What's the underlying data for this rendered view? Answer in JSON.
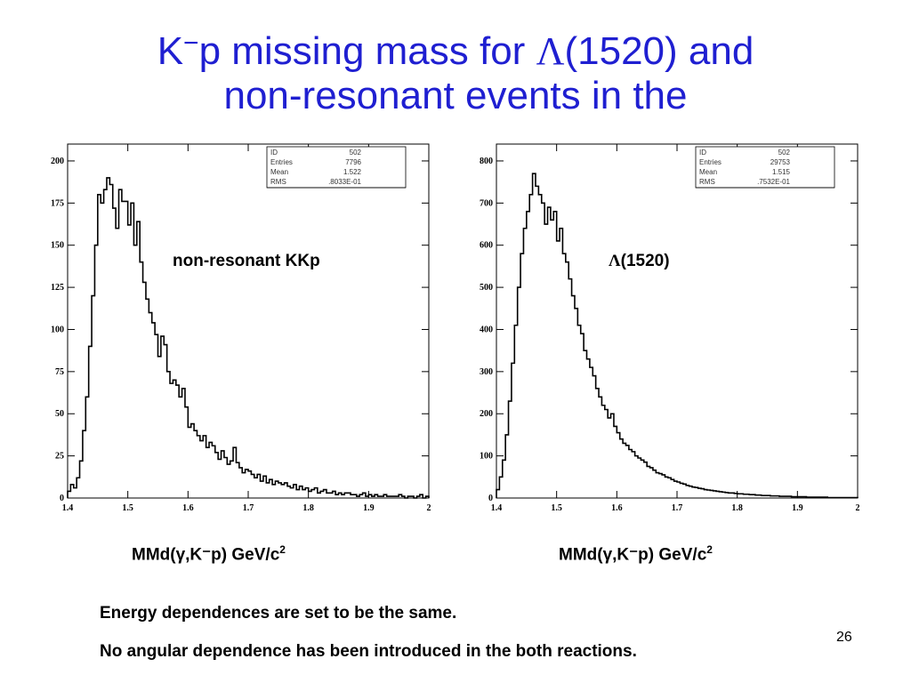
{
  "slide": {
    "title_line1_a": "K",
    "title_line1_sup": "−",
    "title_line1_b": "p missing mass for ",
    "title_lambda": "Λ",
    "title_line1_c": "(1520) and",
    "title_line2": "non-resonant events in the",
    "notes": [
      "Energy dependences are set to be the same.",
      "No angular dependence has been introduced in the both reactions."
    ],
    "page_number": "26"
  },
  "chart_data": [
    {
      "type": "histogram",
      "label": "non-resonant KKp",
      "xlabel_main": "MMd(γ,K⁻p)   GeV/c",
      "xlabel_sup": "2",
      "xlim": [
        1.4,
        2.0
      ],
      "ylim": [
        0,
        210
      ],
      "xticks": [
        "1.4",
        "1.5",
        "1.6",
        "1.7",
        "1.8",
        "1.9",
        "2"
      ],
      "yticks": [
        "0",
        "25",
        "50",
        "75",
        "100",
        "125",
        "150",
        "175",
        "200"
      ],
      "stats": [
        [
          "ID",
          "502"
        ],
        [
          "Entries",
          "7796"
        ],
        [
          "Mean",
          "1.522"
        ],
        [
          "RMS",
          ".8033E-01"
        ]
      ],
      "bin_width": 0.005,
      "x": [
        1.4025,
        1.4075,
        1.4125,
        1.4175,
        1.4225,
        1.4275,
        1.4325,
        1.4375,
        1.4425,
        1.4475,
        1.4525,
        1.4575,
        1.4625,
        1.4675,
        1.4725,
        1.4775,
        1.4825,
        1.4875,
        1.4925,
        1.4975,
        1.5025,
        1.5075,
        1.5125,
        1.5175,
        1.5225,
        1.5275,
        1.5325,
        1.5375,
        1.5425,
        1.5475,
        1.5525,
        1.5575,
        1.5625,
        1.5675,
        1.5725,
        1.5775,
        1.5825,
        1.5875,
        1.5925,
        1.5975,
        1.6025,
        1.6075,
        1.6125,
        1.6175,
        1.6225,
        1.6275,
        1.6325,
        1.6375,
        1.6425,
        1.6475,
        1.6525,
        1.6575,
        1.6625,
        1.6675,
        1.6725,
        1.6775,
        1.6825,
        1.6875,
        1.6925,
        1.6975,
        1.7025,
        1.7075,
        1.7125,
        1.7175,
        1.7225,
        1.7275,
        1.7325,
        1.7375,
        1.7425,
        1.7475,
        1.7525,
        1.7575,
        1.7625,
        1.7675,
        1.7725,
        1.7775,
        1.7825,
        1.7875,
        1.7925,
        1.7975,
        1.8025,
        1.8075,
        1.8125,
        1.8175,
        1.8225,
        1.8275,
        1.8325,
        1.8375,
        1.8425,
        1.8475,
        1.8525,
        1.8575,
        1.8625,
        1.8675,
        1.8725,
        1.8775,
        1.8825,
        1.8875,
        1.8925,
        1.8975,
        1.9025,
        1.9075,
        1.9125,
        1.9175,
        1.9225,
        1.9275,
        1.9325,
        1.9375,
        1.9425,
        1.9475,
        1.9525,
        1.9575,
        1.9625,
        1.9675,
        1.9725,
        1.9775,
        1.9825,
        1.9875,
        1.9925,
        1.9975
      ],
      "values": [
        4,
        8,
        6,
        12,
        22,
        40,
        60,
        90,
        120,
        150,
        180,
        175,
        183,
        190,
        186,
        172,
        160,
        183,
        176,
        176,
        162,
        175,
        150,
        164,
        140,
        128,
        118,
        110,
        104,
        97,
        84,
        96,
        91,
        75,
        68,
        70,
        67,
        60,
        65,
        54,
        42,
        44,
        40,
        37,
        34,
        37,
        30,
        33,
        31,
        27,
        23,
        28,
        24,
        20,
        22,
        30,
        21,
        18,
        15,
        17,
        16,
        14,
        12,
        14,
        10,
        13,
        9,
        11,
        8,
        10,
        9,
        8,
        9,
        7,
        6,
        8,
        5,
        7,
        5,
        6,
        4,
        5,
        6,
        3,
        4,
        5,
        3,
        3,
        4,
        2,
        3,
        2,
        3,
        3,
        2,
        2,
        1,
        2,
        3,
        1,
        2,
        1,
        2,
        1,
        1,
        2,
        1,
        1,
        1,
        1,
        2,
        1,
        0,
        1,
        1,
        0,
        1,
        2,
        0,
        1
      ]
    },
    {
      "type": "histogram",
      "label_lambda": "Λ",
      "label_rest": "(1520)",
      "xlabel_main": "MMd(γ,K⁻p)   GeV/c",
      "xlabel_sup": "2",
      "xlim": [
        1.4,
        2.0
      ],
      "ylim": [
        0,
        840
      ],
      "xticks": [
        "1.4",
        "1.5",
        "1.6",
        "1.7",
        "1.8",
        "1.9",
        "2"
      ],
      "yticks": [
        "0",
        "100",
        "200",
        "300",
        "400",
        "500",
        "600",
        "700",
        "800"
      ],
      "stats": [
        [
          "ID",
          "502"
        ],
        [
          "Entries",
          "29753"
        ],
        [
          "Mean",
          "1.515"
        ],
        [
          "RMS",
          ".7532E-01"
        ]
      ],
      "bin_width": 0.005,
      "x": [
        1.4025,
        1.4075,
        1.4125,
        1.4175,
        1.4225,
        1.4275,
        1.4325,
        1.4375,
        1.4425,
        1.4475,
        1.4525,
        1.4575,
        1.4625,
        1.4675,
        1.4725,
        1.4775,
        1.4825,
        1.4875,
        1.4925,
        1.4975,
        1.5025,
        1.5075,
        1.5125,
        1.5175,
        1.5225,
        1.5275,
        1.5325,
        1.5375,
        1.5425,
        1.5475,
        1.5525,
        1.5575,
        1.5625,
        1.5675,
        1.5725,
        1.5775,
        1.5825,
        1.5875,
        1.5925,
        1.5975,
        1.6025,
        1.6075,
        1.6125,
        1.6175,
        1.6225,
        1.6275,
        1.6325,
        1.6375,
        1.6425,
        1.6475,
        1.6525,
        1.6575,
        1.6625,
        1.6675,
        1.6725,
        1.6775,
        1.6825,
        1.6875,
        1.6925,
        1.6975,
        1.7025,
        1.7075,
        1.7125,
        1.7175,
        1.7225,
        1.7275,
        1.7325,
        1.7375,
        1.7425,
        1.7475,
        1.7525,
        1.7575,
        1.7625,
        1.7675,
        1.7725,
        1.7775,
        1.7825,
        1.7875,
        1.7925,
        1.7975,
        1.8025,
        1.8075,
        1.8125,
        1.8175,
        1.8225,
        1.8275,
        1.8325,
        1.8375,
        1.8425,
        1.8475,
        1.8525,
        1.8575,
        1.8625,
        1.8675,
        1.8725,
        1.8775,
        1.8825,
        1.8875,
        1.8925,
        1.8975,
        1.9025,
        1.9075,
        1.9125,
        1.9175,
        1.9225,
        1.9275,
        1.9325,
        1.9375,
        1.9425,
        1.9475,
        1.9525,
        1.9575,
        1.9625,
        1.9675,
        1.9725,
        1.9775,
        1.9825,
        1.9875,
        1.9925,
        1.9975
      ],
      "values": [
        20,
        50,
        90,
        150,
        230,
        320,
        410,
        500,
        580,
        640,
        680,
        720,
        770,
        740,
        720,
        700,
        650,
        690,
        660,
        680,
        610,
        640,
        580,
        560,
        520,
        480,
        450,
        410,
        390,
        350,
        330,
        310,
        290,
        260,
        240,
        220,
        210,
        190,
        200,
        170,
        155,
        140,
        130,
        125,
        115,
        110,
        100,
        95,
        90,
        85,
        75,
        72,
        66,
        60,
        58,
        55,
        50,
        48,
        44,
        40,
        38,
        35,
        33,
        30,
        28,
        26,
        25,
        23,
        22,
        20,
        19,
        18,
        17,
        16,
        15,
        14,
        13,
        12,
        12,
        11,
        10,
        10,
        9,
        9,
        8,
        8,
        7,
        7,
        6,
        6,
        6,
        5,
        5,
        5,
        4,
        4,
        4,
        4,
        3,
        3,
        3,
        3,
        3,
        2,
        2,
        2,
        2,
        2,
        2,
        2,
        1,
        1,
        1,
        1,
        1,
        1,
        1,
        1,
        1,
        1
      ]
    }
  ]
}
